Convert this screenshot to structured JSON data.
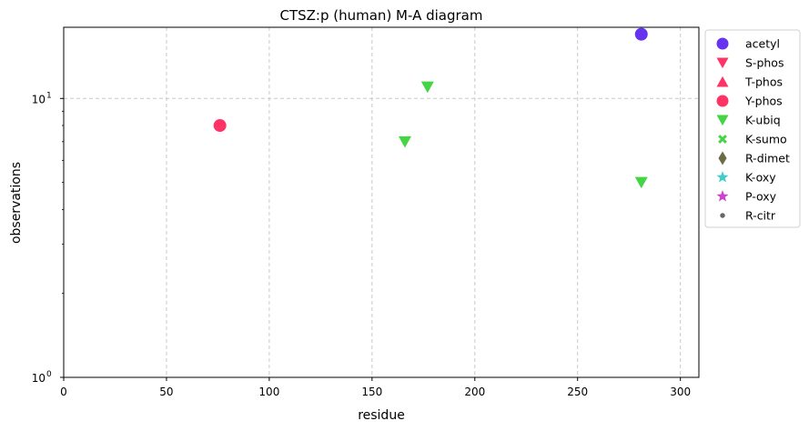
{
  "chart_data": {
    "type": "scatter",
    "title": "CTSZ:p (human) M-A diagram",
    "xlabel": "residue",
    "ylabel": "observations",
    "xlim": [
      0,
      309
    ],
    "ylim": [
      1,
      18
    ],
    "yscale": "log",
    "grid": true,
    "legend_position": "outside-right",
    "x_ticks": [
      0,
      50,
      100,
      150,
      200,
      250,
      300
    ],
    "x_tick_labels": [
      "0",
      "50",
      "100",
      "150",
      "200",
      "250",
      "300"
    ],
    "y_major_ticks": [
      1,
      10
    ],
    "y_major_tick_labels": [
      "10",
      "10"
    ],
    "y_major_tick_exponents": [
      "0",
      "1"
    ],
    "y_minor_ticks": [
      2,
      3,
      4,
      5,
      6,
      7,
      8,
      9
    ],
    "series": [
      {
        "name": "acetyl",
        "marker": "circle",
        "color": "#6633ee",
        "points": [
          {
            "x": 281,
            "y": 17
          }
        ]
      },
      {
        "name": "S-phos",
        "marker": "triangle-down",
        "color": "#ff3366",
        "points": []
      },
      {
        "name": "T-phos",
        "marker": "triangle-up",
        "color": "#ff3366",
        "points": []
      },
      {
        "name": "Y-phos",
        "marker": "circle",
        "color": "#ff3366",
        "points": [
          {
            "x": 76,
            "y": 8
          }
        ]
      },
      {
        "name": "K-ubiq",
        "marker": "triangle-down",
        "color": "#44d444",
        "points": [
          {
            "x": 177,
            "y": 11
          },
          {
            "x": 166,
            "y": 7
          },
          {
            "x": 281,
            "y": 5
          }
        ]
      },
      {
        "name": "K-sumo",
        "marker": "x",
        "color": "#44d444",
        "points": []
      },
      {
        "name": "R-dimet",
        "marker": "diamond",
        "color": "#6b6b44",
        "points": []
      },
      {
        "name": "K-oxy",
        "marker": "star",
        "color": "#44cccc",
        "points": []
      },
      {
        "name": "P-oxy",
        "marker": "star",
        "color": "#cc44cc",
        "points": []
      },
      {
        "name": "R-citr",
        "marker": "dot",
        "color": "#666666",
        "points": []
      }
    ]
  }
}
